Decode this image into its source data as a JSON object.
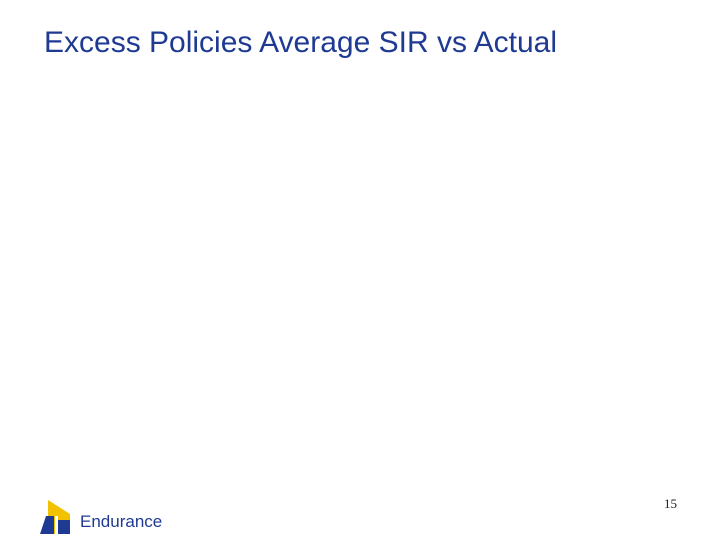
{
  "slide": {
    "title": "Excess Policies Average SIR vs Actual",
    "page_number": "15"
  },
  "footer": {
    "logo_text": "Endurance",
    "logo_icon": "endurance-logo-icon"
  },
  "colors": {
    "title": "#1f3a93",
    "logo_blue": "#1f3a93",
    "logo_yellow": "#f2c200"
  }
}
